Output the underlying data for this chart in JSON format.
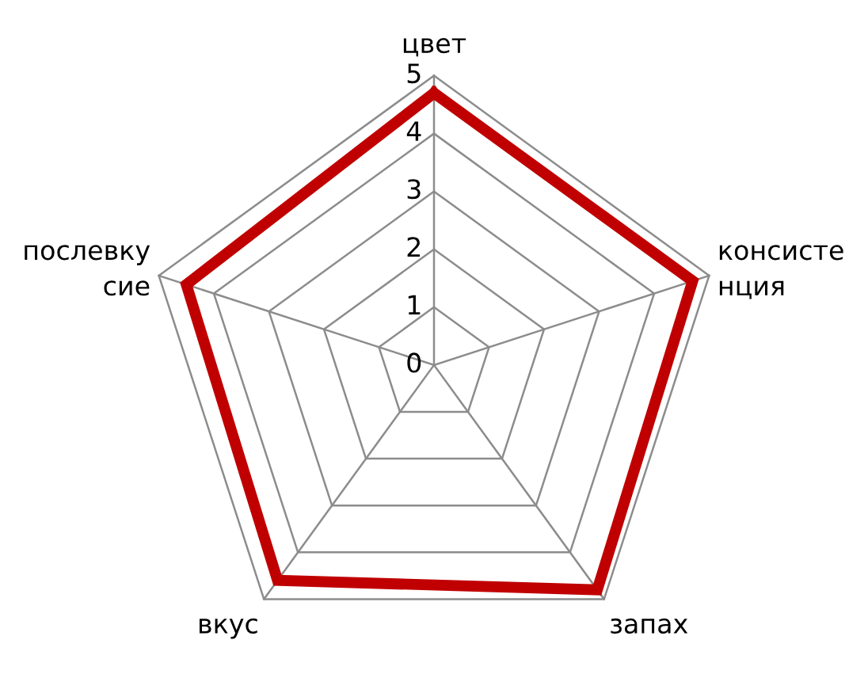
{
  "chart_data": {
    "type": "radar",
    "categories": [
      "цвет",
      "консисте\nнция",
      "запах",
      "вкус",
      "послевку\nсие"
    ],
    "series": [
      {
        "color": "#c00000",
        "values": [
          4.7,
          4.7,
          4.8,
          4.6,
          4.5
        ]
      }
    ],
    "ylim": [
      0,
      5
    ],
    "yticks": [
      0,
      1,
      2,
      3,
      4,
      5
    ],
    "grid": true,
    "marker": "none",
    "line_style": "solid"
  }
}
